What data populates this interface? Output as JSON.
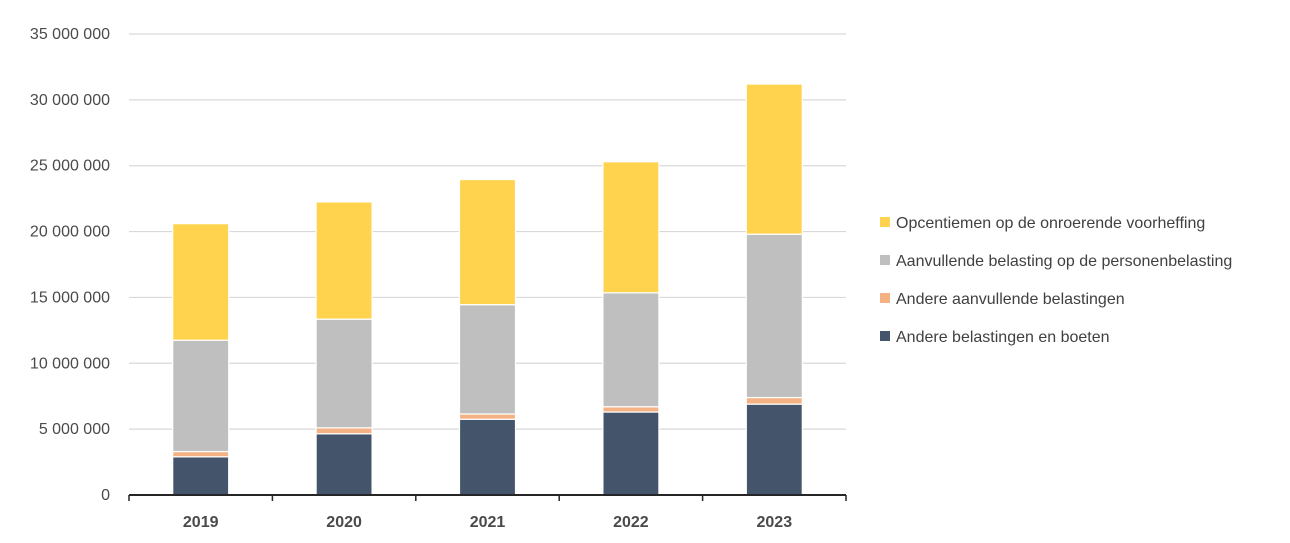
{
  "chart_data": {
    "type": "bar",
    "stacked": true,
    "categories": [
      "2019",
      "2020",
      "2021",
      "2022",
      "2023"
    ],
    "series": [
      {
        "name": "Andere belastingen en boeten",
        "color": "#44546A",
        "values": [
          2900000,
          4650000,
          5750000,
          6300000,
          6900000
        ]
      },
      {
        "name": "Andere aanvullende belastingen",
        "color": "#F4B183",
        "values": [
          400000,
          450000,
          400000,
          400000,
          500000
        ]
      },
      {
        "name": "Aanvullende belasting op de personenbelasting",
        "color": "#BFBFBF",
        "values": [
          8450000,
          8250000,
          8300000,
          8650000,
          12400000
        ]
      },
      {
        "name": "Opcentiemen op de onroerende voorheffing",
        "color": "#FFD34D",
        "values": [
          8850000,
          8900000,
          9500000,
          9950000,
          11400000
        ]
      }
    ],
    "yticks": [
      "0",
      "5 000 000",
      "10 000 000",
      "15 000 000",
      "20 000 000",
      "25 000 000",
      "30 000 000",
      "35 000 000"
    ],
    "ylim": [
      0,
      35000000
    ],
    "grid": true,
    "legend": {
      "position": "right",
      "order": [
        "Opcentiemen op de onroerende voorheffing",
        "Aanvullende belasting op de personenbelasting",
        "Andere aanvullende belastingen",
        "Andere belastingen en boeten"
      ]
    }
  }
}
